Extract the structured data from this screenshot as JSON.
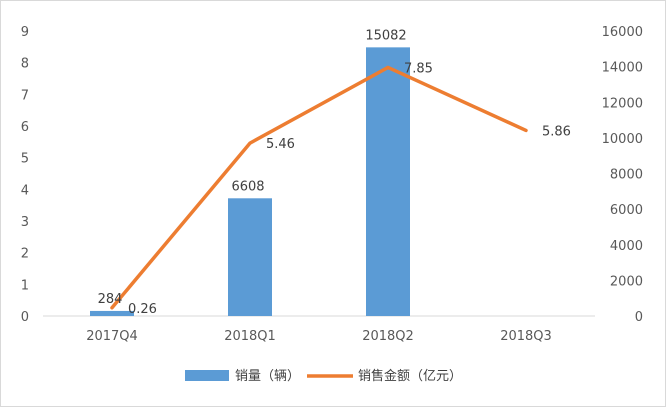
{
  "chart_data": {
    "type": "bar",
    "categories": [
      "2017Q4",
      "2018Q1",
      "2018Q2",
      "2018Q3"
    ],
    "series": [
      {
        "name": "销量（辆）",
        "type": "bar",
        "axis": "right",
        "values": [
          284,
          6608,
          15082,
          null
        ],
        "labels": [
          "284",
          "6608",
          "15082",
          ""
        ],
        "color": "#5b9bd5"
      },
      {
        "name": "销售金额（亿元）",
        "type": "line",
        "axis": "left",
        "values": [
          0.26,
          5.46,
          7.85,
          5.86
        ],
        "labels": [
          "0.26",
          "5.46",
          "7.85",
          "5.86"
        ],
        "color": "#ed7d31"
      }
    ],
    "left_axis": {
      "min": 0,
      "max": 9,
      "step": 1,
      "ticks": [
        "0",
        "1",
        "2",
        "3",
        "4",
        "5",
        "6",
        "7",
        "8",
        "9"
      ]
    },
    "right_axis": {
      "min": 0,
      "max": 16000,
      "step": 2000,
      "ticks": [
        "0",
        "2000",
        "4000",
        "6000",
        "8000",
        "10000",
        "12000",
        "14000",
        "16000"
      ]
    },
    "grid": false,
    "legend_position": "bottom",
    "title": "",
    "xlabel": "",
    "ylabel": "",
    "colors": {
      "axis_text": "#595959",
      "axis_line": "#d9d9d9",
      "label_text": "#404040"
    }
  }
}
